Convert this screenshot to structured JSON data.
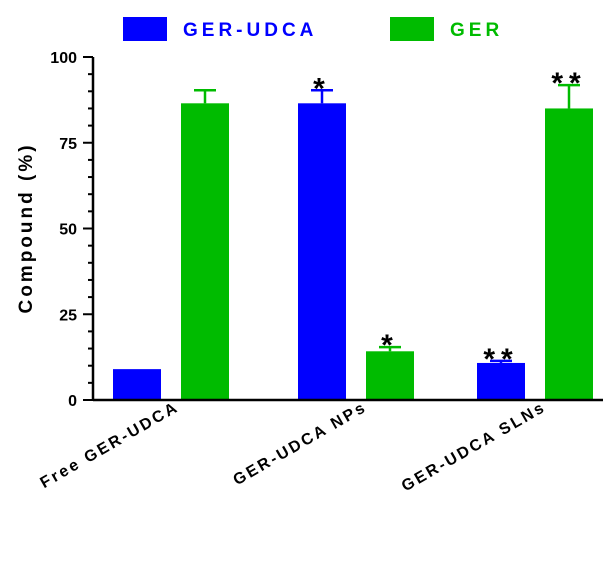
{
  "chart_data": {
    "type": "bar",
    "categories": [
      "Free GER-UDCA",
      "GER-UDCA NPs",
      "GER-UDCA SLNs"
    ],
    "series": [
      {
        "name": "GER-UDCA",
        "color": "#0000ff",
        "values": [
          9,
          86.5,
          10.8
        ],
        "errors": [
          0,
          3.8,
          0.6
        ],
        "marks": [
          "",
          "*",
          "**"
        ]
      },
      {
        "name": "GER",
        "color": "#00bb00",
        "values": [
          86.5,
          14.2,
          85
        ],
        "errors": [
          3.8,
          1.2,
          6.8
        ],
        "marks": [
          "",
          "*",
          "**"
        ]
      }
    ],
    "ylabel": "Compound (%)",
    "ylim": [
      0,
      100
    ],
    "yticks": [
      0,
      25,
      50,
      75,
      100
    ],
    "legend_position": "top"
  }
}
